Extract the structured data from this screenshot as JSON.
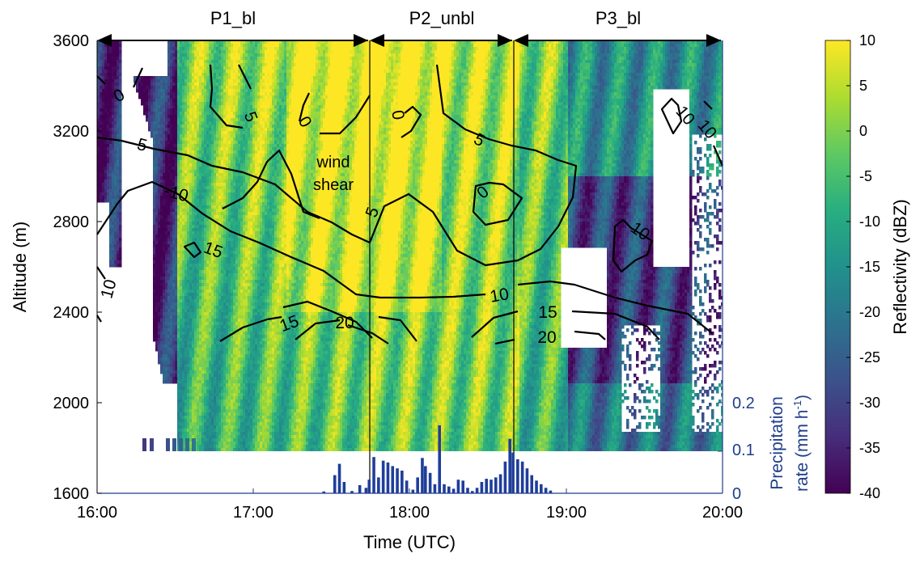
{
  "chart_data": {
    "type": "heatmap",
    "title": "",
    "xlabel": "Time (UTC)",
    "ylabel": "Altitude (m)",
    "x_range": [
      "16:00",
      "20:00"
    ],
    "x_ticks": [
      "16:00",
      "17:00",
      "18:00",
      "19:00",
      "20:00"
    ],
    "ylim": [
      1600,
      3600
    ],
    "y_ticks": [
      "1600",
      "2000",
      "2400",
      "2800",
      "3200",
      "3600"
    ],
    "colorbar": {
      "label": "Reflectivity (dBZ)",
      "range": [
        -40,
        10
      ],
      "ticks": [
        "10",
        "5",
        "0",
        "-5",
        "-10",
        "-15",
        "-20",
        "-25",
        "-30",
        "-35",
        "-40"
      ],
      "colormap": [
        "#440154",
        "#472d7b",
        "#3b528b",
        "#2c728e",
        "#21918c",
        "#28ae80",
        "#5ec962",
        "#addc30",
        "#fde725"
      ]
    },
    "periods": [
      {
        "label": "P1_bl",
        "start": "16:00",
        "end": "17:46"
      },
      {
        "label": "P2_unbl",
        "start": "17:46",
        "end": "18:40"
      },
      {
        "label": "P3_bl",
        "start": "18:40",
        "end": "20:00"
      }
    ],
    "annotation": "wind shear",
    "contour_labels": [
      "0",
      "0",
      "0",
      "0",
      "5",
      "5",
      "5",
      "5",
      "-10",
      "10",
      "10",
      "10",
      "10",
      "10",
      "15",
      "15",
      "15",
      "20",
      "20"
    ],
    "precipitation": {
      "axis_label": "Precipitation rate (mm h⁻¹)",
      "axis_ticks": [
        "0",
        "0.1",
        "0.2"
      ],
      "ylim": [
        0,
        0.2
      ],
      "bars": [
        {
          "t": 17.45,
          "v": 0.004
        },
        {
          "t": 17.52,
          "v": 0.04
        },
        {
          "t": 17.55,
          "v": 0.065
        },
        {
          "t": 17.58,
          "v": 0.025
        },
        {
          "t": 17.63,
          "v": 0.005
        },
        {
          "t": 17.68,
          "v": 0.018
        },
        {
          "t": 17.72,
          "v": 0.012
        },
        {
          "t": 17.74,
          "v": 0.03
        },
        {
          "t": 17.77,
          "v": 0.08
        },
        {
          "t": 17.8,
          "v": 0.035
        },
        {
          "t": 17.83,
          "v": 0.072
        },
        {
          "t": 17.86,
          "v": 0.068
        },
        {
          "t": 17.89,
          "v": 0.06
        },
        {
          "t": 17.92,
          "v": 0.055
        },
        {
          "t": 17.95,
          "v": 0.05
        },
        {
          "t": 17.98,
          "v": 0.028
        },
        {
          "t": 18.02,
          "v": 0.008
        },
        {
          "t": 18.05,
          "v": 0.035
        },
        {
          "t": 18.08,
          "v": 0.078
        },
        {
          "t": 18.1,
          "v": 0.06
        },
        {
          "t": 18.13,
          "v": 0.045
        },
        {
          "t": 18.16,
          "v": 0.02
        },
        {
          "t": 18.19,
          "v": 0.15
        },
        {
          "t": 18.22,
          "v": 0.02
        },
        {
          "t": 18.25,
          "v": 0.015
        },
        {
          "t": 18.28,
          "v": 0.01
        },
        {
          "t": 18.31,
          "v": 0.03
        },
        {
          "t": 18.34,
          "v": 0.028
        },
        {
          "t": 18.37,
          "v": 0.012
        },
        {
          "t": 18.4,
          "v": 0.005
        },
        {
          "t": 18.43,
          "v": 0.012
        },
        {
          "t": 18.46,
          "v": 0.025
        },
        {
          "t": 18.49,
          "v": 0.032
        },
        {
          "t": 18.52,
          "v": 0.03
        },
        {
          "t": 18.55,
          "v": 0.035
        },
        {
          "t": 18.58,
          "v": 0.042
        },
        {
          "t": 18.61,
          "v": 0.07
        },
        {
          "t": 18.64,
          "v": 0.12
        },
        {
          "t": 18.66,
          "v": 0.09
        },
        {
          "t": 18.69,
          "v": 0.075
        },
        {
          "t": 18.72,
          "v": 0.07
        },
        {
          "t": 18.75,
          "v": 0.055
        },
        {
          "t": 18.78,
          "v": 0.04
        },
        {
          "t": 18.81,
          "v": 0.028
        },
        {
          "t": 18.84,
          "v": 0.02
        },
        {
          "t": 18.87,
          "v": 0.012
        },
        {
          "t": 18.9,
          "v": 0.006
        }
      ]
    }
  }
}
